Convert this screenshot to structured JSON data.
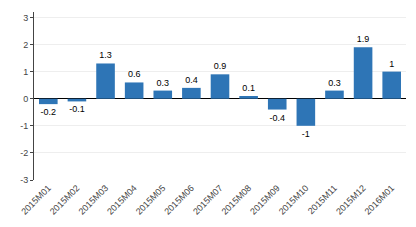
{
  "chart_data": {
    "type": "bar",
    "categories": [
      "2015M01",
      "2015M02",
      "2015M03",
      "2015M04",
      "2015M05",
      "2015M06",
      "2015M07",
      "2015M08",
      "2015M09",
      "2015M10",
      "2015M11",
      "2015M12",
      "2016M01"
    ],
    "values": [
      -0.2,
      -0.1,
      1.3,
      0.6,
      0.3,
      0.4,
      0.9,
      0.1,
      -0.4,
      -1.0,
      0.3,
      1.9,
      1.0
    ],
    "color": "#2E75B6",
    "ylim": [
      -3,
      3.2
    ],
    "yticks": [
      -3,
      -2,
      -1,
      0,
      1,
      2,
      3
    ],
    "grid": true,
    "data_labels": true
  }
}
